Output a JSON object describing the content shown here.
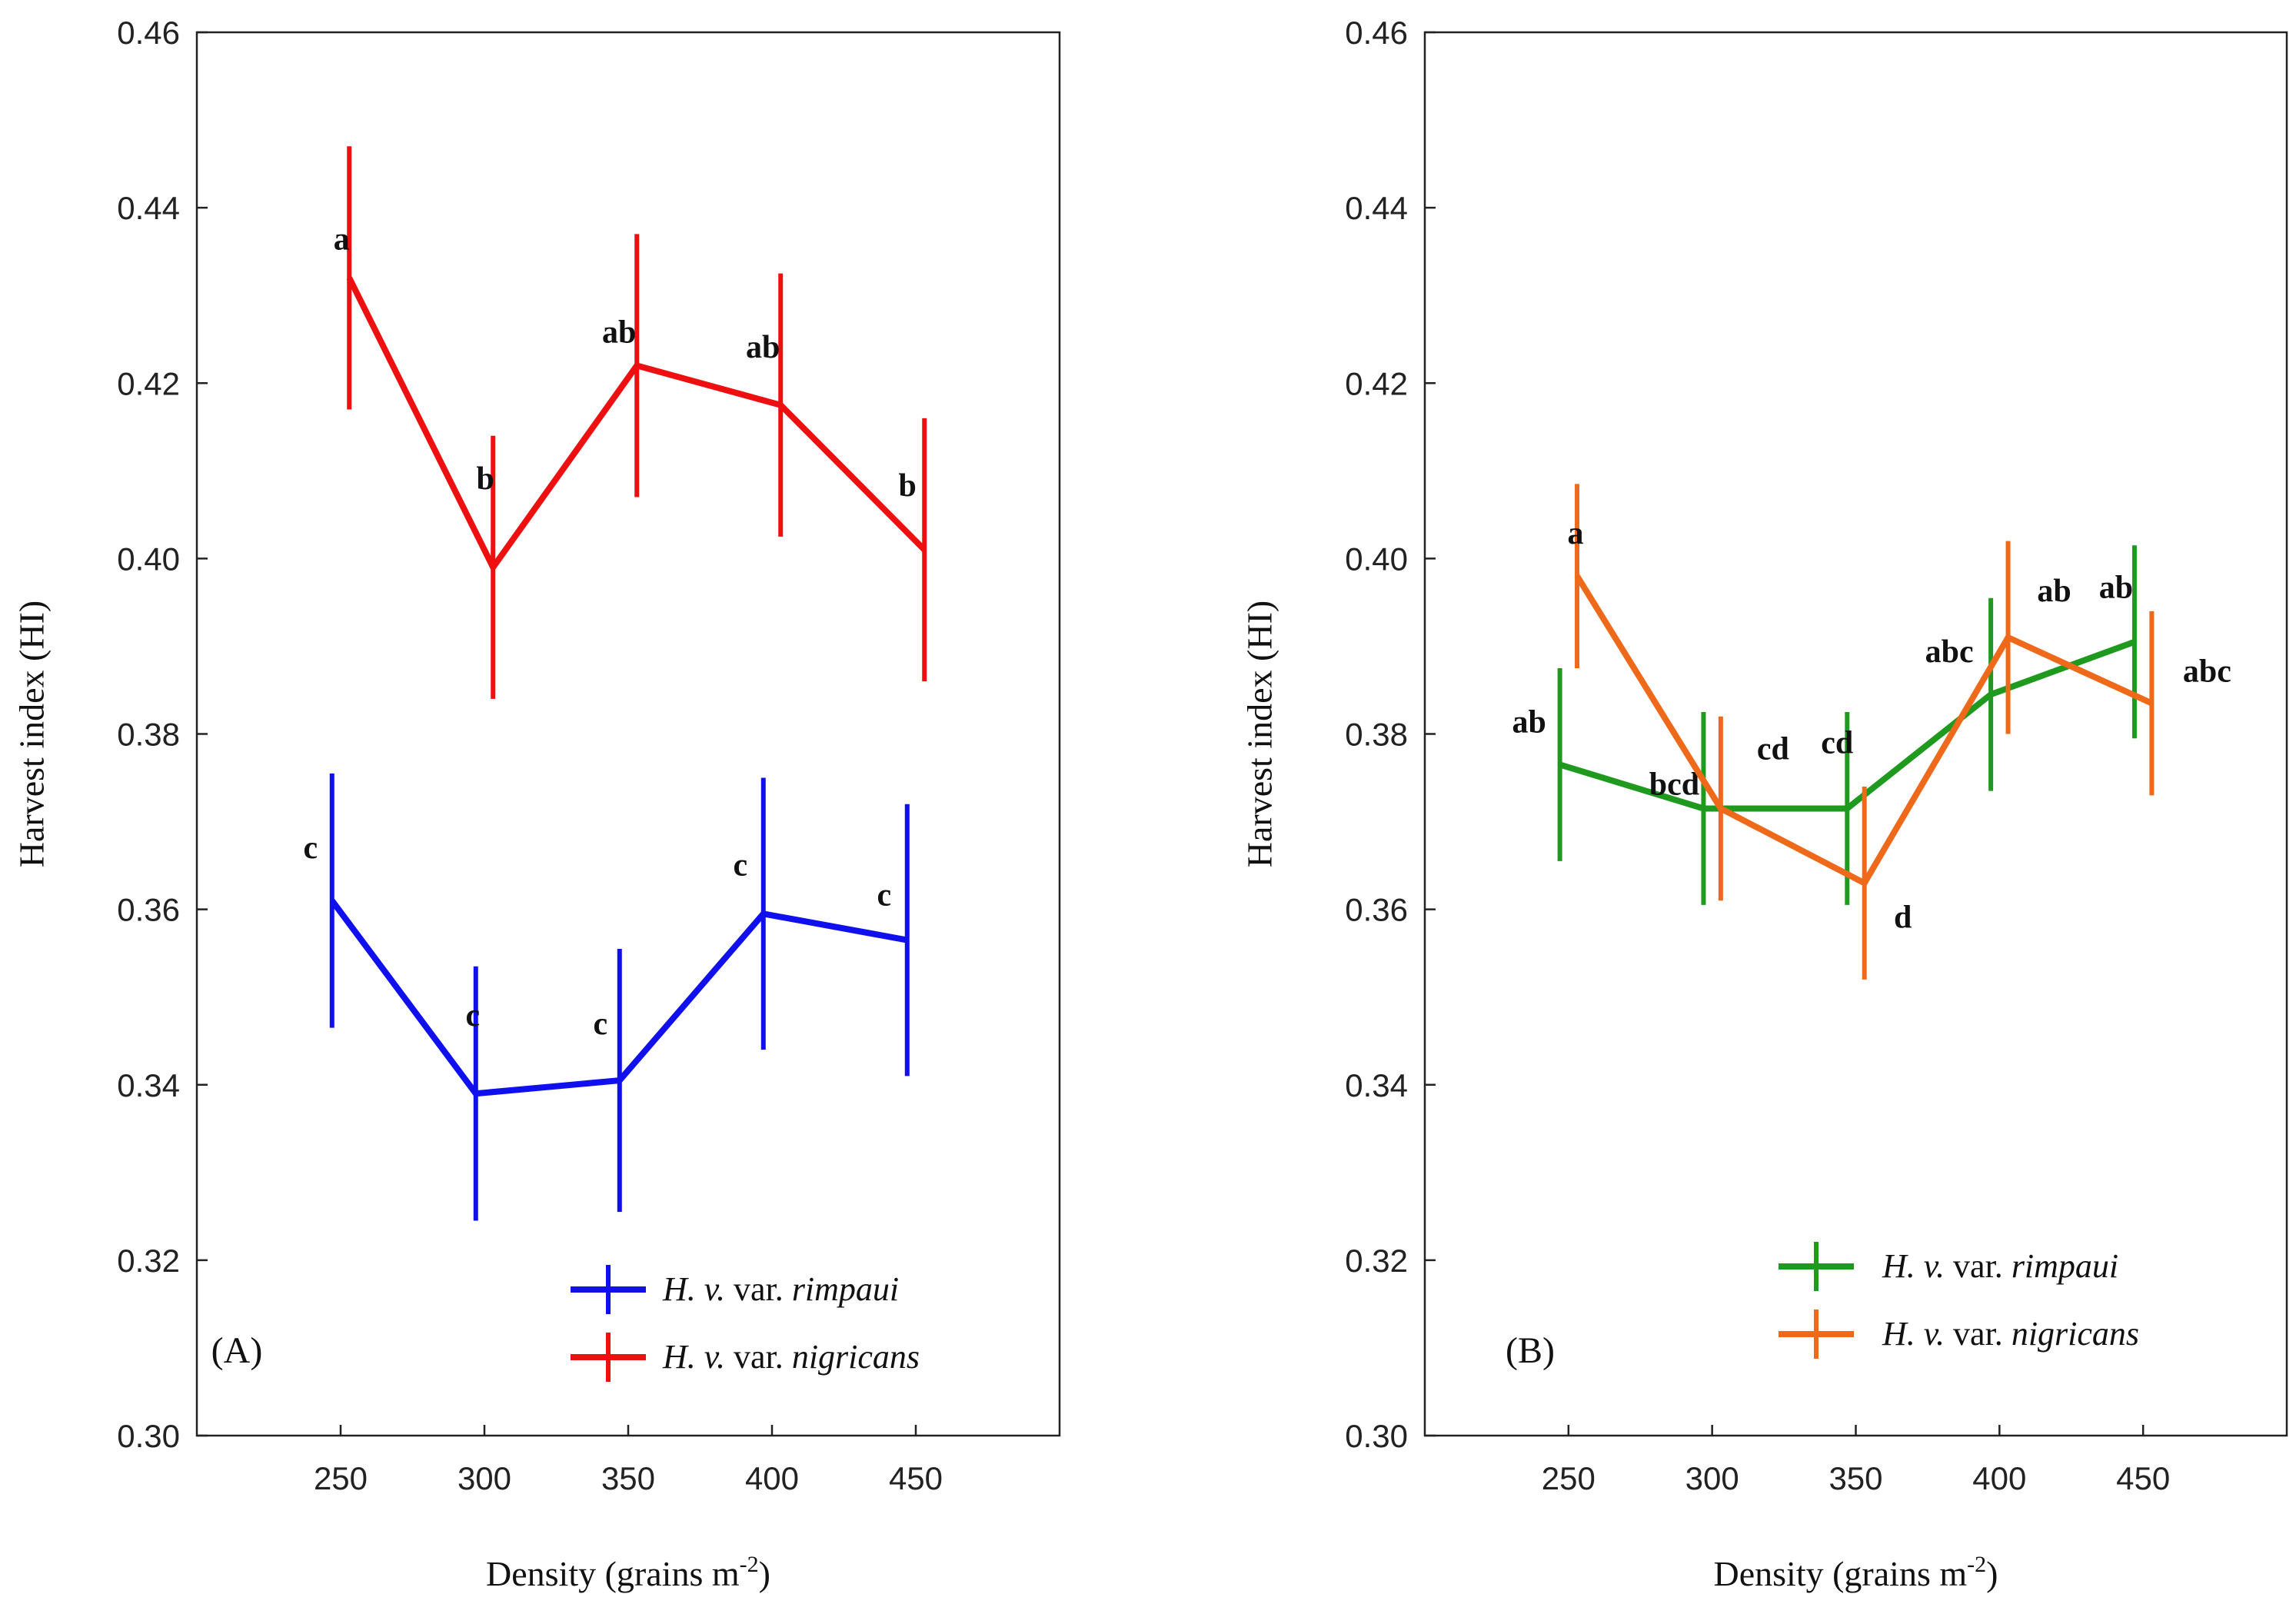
{
  "chart_data": [
    {
      "type": "line",
      "panel_label": "(A)",
      "xlabel": "Density (grains m",
      "xlabel_sup": "-2",
      "xlabel_close": ")",
      "ylabel": "Harvest index (HI)",
      "ylim": [
        0.3,
        0.46
      ],
      "xlim": [
        200,
        500
      ],
      "y_ticks": [
        "0.30",
        "0.32",
        "0.34",
        "0.36",
        "0.38",
        "0.40",
        "0.42",
        "0.44",
        "0.46"
      ],
      "x_ticks": [
        "250",
        "300",
        "350",
        "400",
        "450"
      ],
      "legend_position": "bottom-right",
      "series": [
        {
          "legend_pre": "H. v.",
          "legend_mid": " var. ",
          "legend_post": "rimpaui",
          "color": "#1010ee",
          "x": [
            247,
            297,
            347,
            397,
            447
          ],
          "y": [
            0.361,
            0.339,
            0.3405,
            0.3595,
            0.3565
          ],
          "err": [
            0.0145,
            0.0145,
            0.015,
            0.0155,
            0.0155
          ],
          "letters": [
            "c",
            "c",
            "c",
            "c",
            "c"
          ]
        },
        {
          "legend_pre": "H. v.",
          "legend_mid": " var. ",
          "legend_post": "nigricans",
          "color": "#ee1010",
          "x": [
            253,
            303,
            353,
            403,
            453
          ],
          "y": [
            0.432,
            0.399,
            0.422,
            0.4175,
            0.401
          ],
          "err": [
            0.015,
            0.015,
            0.015,
            0.015,
            0.015
          ],
          "letters": [
            "a",
            "b",
            "ab",
            "ab",
            "b"
          ]
        }
      ]
    },
    {
      "type": "line",
      "panel_label": "(B)",
      "xlabel": "Density (grains m",
      "xlabel_sup": "-2",
      "xlabel_close": ")",
      "ylabel": "Harvest index (HI)",
      "ylim": [
        0.3,
        0.46
      ],
      "xlim": [
        200,
        500
      ],
      "y_ticks": [
        "0.30",
        "0.32",
        "0.34",
        "0.36",
        "0.38",
        "0.40",
        "0.42",
        "0.44",
        "0.46"
      ],
      "x_ticks": [
        "250",
        "300",
        "350",
        "400",
        "450"
      ],
      "legend_position": "bottom-right",
      "series": [
        {
          "legend_pre": "H. v.",
          "legend_mid": " var. ",
          "legend_post": "rimpaui",
          "color": "#1f9a1f",
          "x": [
            247,
            297,
            347,
            397,
            447
          ],
          "y": [
            0.3765,
            0.3715,
            0.3715,
            0.3845,
            0.3905
          ],
          "err": [
            0.011,
            0.011,
            0.011,
            0.011,
            0.011
          ],
          "letters": [
            "ab",
            "bcd",
            "cd",
            "abc",
            "ab"
          ]
        },
        {
          "legend_pre": "H. v.",
          "legend_mid": " var. ",
          "legend_post": "nigricans",
          "color": "#ee6a1a",
          "x": [
            253,
            303,
            353,
            403,
            453
          ],
          "y": [
            0.398,
            0.3715,
            0.363,
            0.391,
            0.3835
          ],
          "err": [
            0.0105,
            0.0105,
            0.011,
            0.011,
            0.0105
          ],
          "letters": [
            "a",
            "cd",
            "d",
            "ab",
            "abc"
          ]
        }
      ]
    }
  ]
}
